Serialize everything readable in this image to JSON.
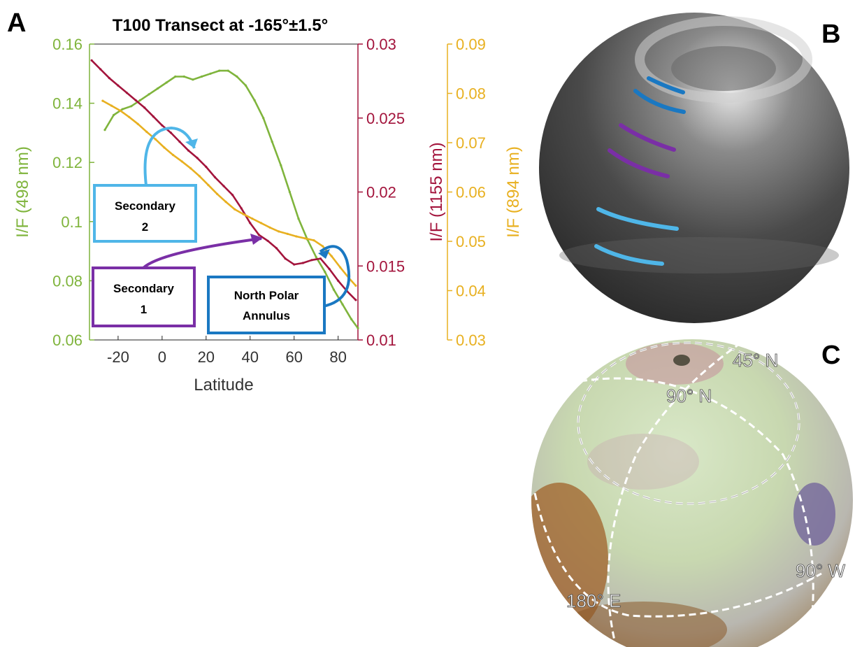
{
  "panels": {
    "a": "A",
    "b": "B",
    "c": "C"
  },
  "globe_labels": [
    "45° N",
    "90° N",
    "90° W",
    "180° E"
  ],
  "colors": {
    "green": "#7fb43c",
    "crimson": "#a3143c",
    "gold": "#e8b020",
    "purple": "#7a2fa6",
    "lightblue": "#4fb6e8",
    "darkblue": "#1a78c2"
  },
  "chart_data": {
    "type": "line",
    "title": "T100 Transect at -165°±1.5°",
    "xlabel": "Latitude",
    "xlim": [
      -33,
      89
    ],
    "xticks": [
      -20,
      0,
      20,
      40,
      60,
      80
    ],
    "axes": [
      {
        "id": "left",
        "label": "I/F (498 nm)",
        "color": "#7fb43c",
        "ylim": [
          0.06,
          0.16
        ],
        "ticks": [
          0.06,
          0.08,
          0.1,
          0.12,
          0.14,
          0.16
        ]
      },
      {
        "id": "mid",
        "label": "I/F (1155 nm)",
        "color": "#a3143c",
        "ylim": [
          0.01,
          0.03
        ],
        "ticks": [
          0.01,
          0.015,
          0.02,
          0.025,
          0.03
        ]
      },
      {
        "id": "right",
        "label": "I/F (894 nm)",
        "color": "#e8b020",
        "ylim": [
          0.03,
          0.09
        ],
        "ticks": [
          0.03,
          0.04,
          0.05,
          0.06,
          0.07,
          0.08,
          0.09
        ]
      }
    ],
    "series": [
      {
        "name": "498 nm",
        "axis": "left",
        "color": "#7fb43c",
        "x": [
          -26,
          -22,
          -18,
          -14,
          -10,
          -6,
          -2,
          2,
          6,
          10,
          14,
          18,
          22,
          26,
          30,
          34,
          38,
          42,
          46,
          50,
          54,
          58,
          62,
          66,
          70,
          74,
          78,
          82,
          86,
          89
        ],
        "y": [
          0.131,
          0.136,
          0.138,
          0.139,
          0.141,
          0.143,
          0.145,
          0.147,
          0.149,
          0.149,
          0.148,
          0.149,
          0.15,
          0.151,
          0.151,
          0.149,
          0.146,
          0.141,
          0.135,
          0.127,
          0.119,
          0.11,
          0.101,
          0.094,
          0.088,
          0.083,
          0.077,
          0.072,
          0.067,
          0.064
        ]
      },
      {
        "name": "1155 nm",
        "axis": "mid",
        "color": "#a3143c",
        "x": [
          -32,
          -28,
          -24,
          -20,
          -16,
          -12,
          -8,
          -4,
          0,
          4,
          8,
          12,
          16,
          20,
          24,
          28,
          32,
          36,
          40,
          44,
          48,
          52,
          56,
          60,
          64,
          68,
          72,
          76,
          80,
          84,
          88
        ],
        "y": [
          0.0289,
          0.0283,
          0.0277,
          0.0272,
          0.0267,
          0.0262,
          0.0257,
          0.0251,
          0.0245,
          0.024,
          0.0234,
          0.0228,
          0.0223,
          0.0217,
          0.021,
          0.0204,
          0.0198,
          0.0189,
          0.0179,
          0.0171,
          0.0167,
          0.0162,
          0.0155,
          0.0151,
          0.0152,
          0.0154,
          0.0155,
          0.0148,
          0.014,
          0.0133,
          0.0127
        ]
      },
      {
        "name": "894 nm",
        "axis": "right",
        "color": "#e8b020",
        "x": [
          -27,
          -23,
          -19,
          -15,
          -11,
          -7,
          -3,
          1,
          5,
          9,
          13,
          17,
          21,
          25,
          29,
          33,
          37,
          41,
          45,
          49,
          53,
          57,
          61,
          65,
          69,
          73,
          77,
          81,
          85,
          88
        ],
        "y": [
          0.0785,
          0.0775,
          0.0765,
          0.0752,
          0.0738,
          0.0722,
          0.0707,
          0.069,
          0.0675,
          0.0662,
          0.0648,
          0.0632,
          0.0614,
          0.0596,
          0.058,
          0.0565,
          0.0555,
          0.0546,
          0.0537,
          0.0528,
          0.052,
          0.0515,
          0.051,
          0.0506,
          0.0502,
          0.049,
          0.047,
          0.0447,
          0.0425,
          0.041
        ]
      }
    ],
    "annotations": [
      {
        "id": "secondary2",
        "lines": [
          "Secondary",
          "2"
        ],
        "color": "#4fb6e8"
      },
      {
        "id": "secondary1",
        "lines": [
          "Secondary",
          "1"
        ],
        "color": "#7a2fa6"
      },
      {
        "id": "npa",
        "lines": [
          "North Polar",
          "Annulus"
        ],
        "color": "#1a78c2"
      }
    ]
  }
}
